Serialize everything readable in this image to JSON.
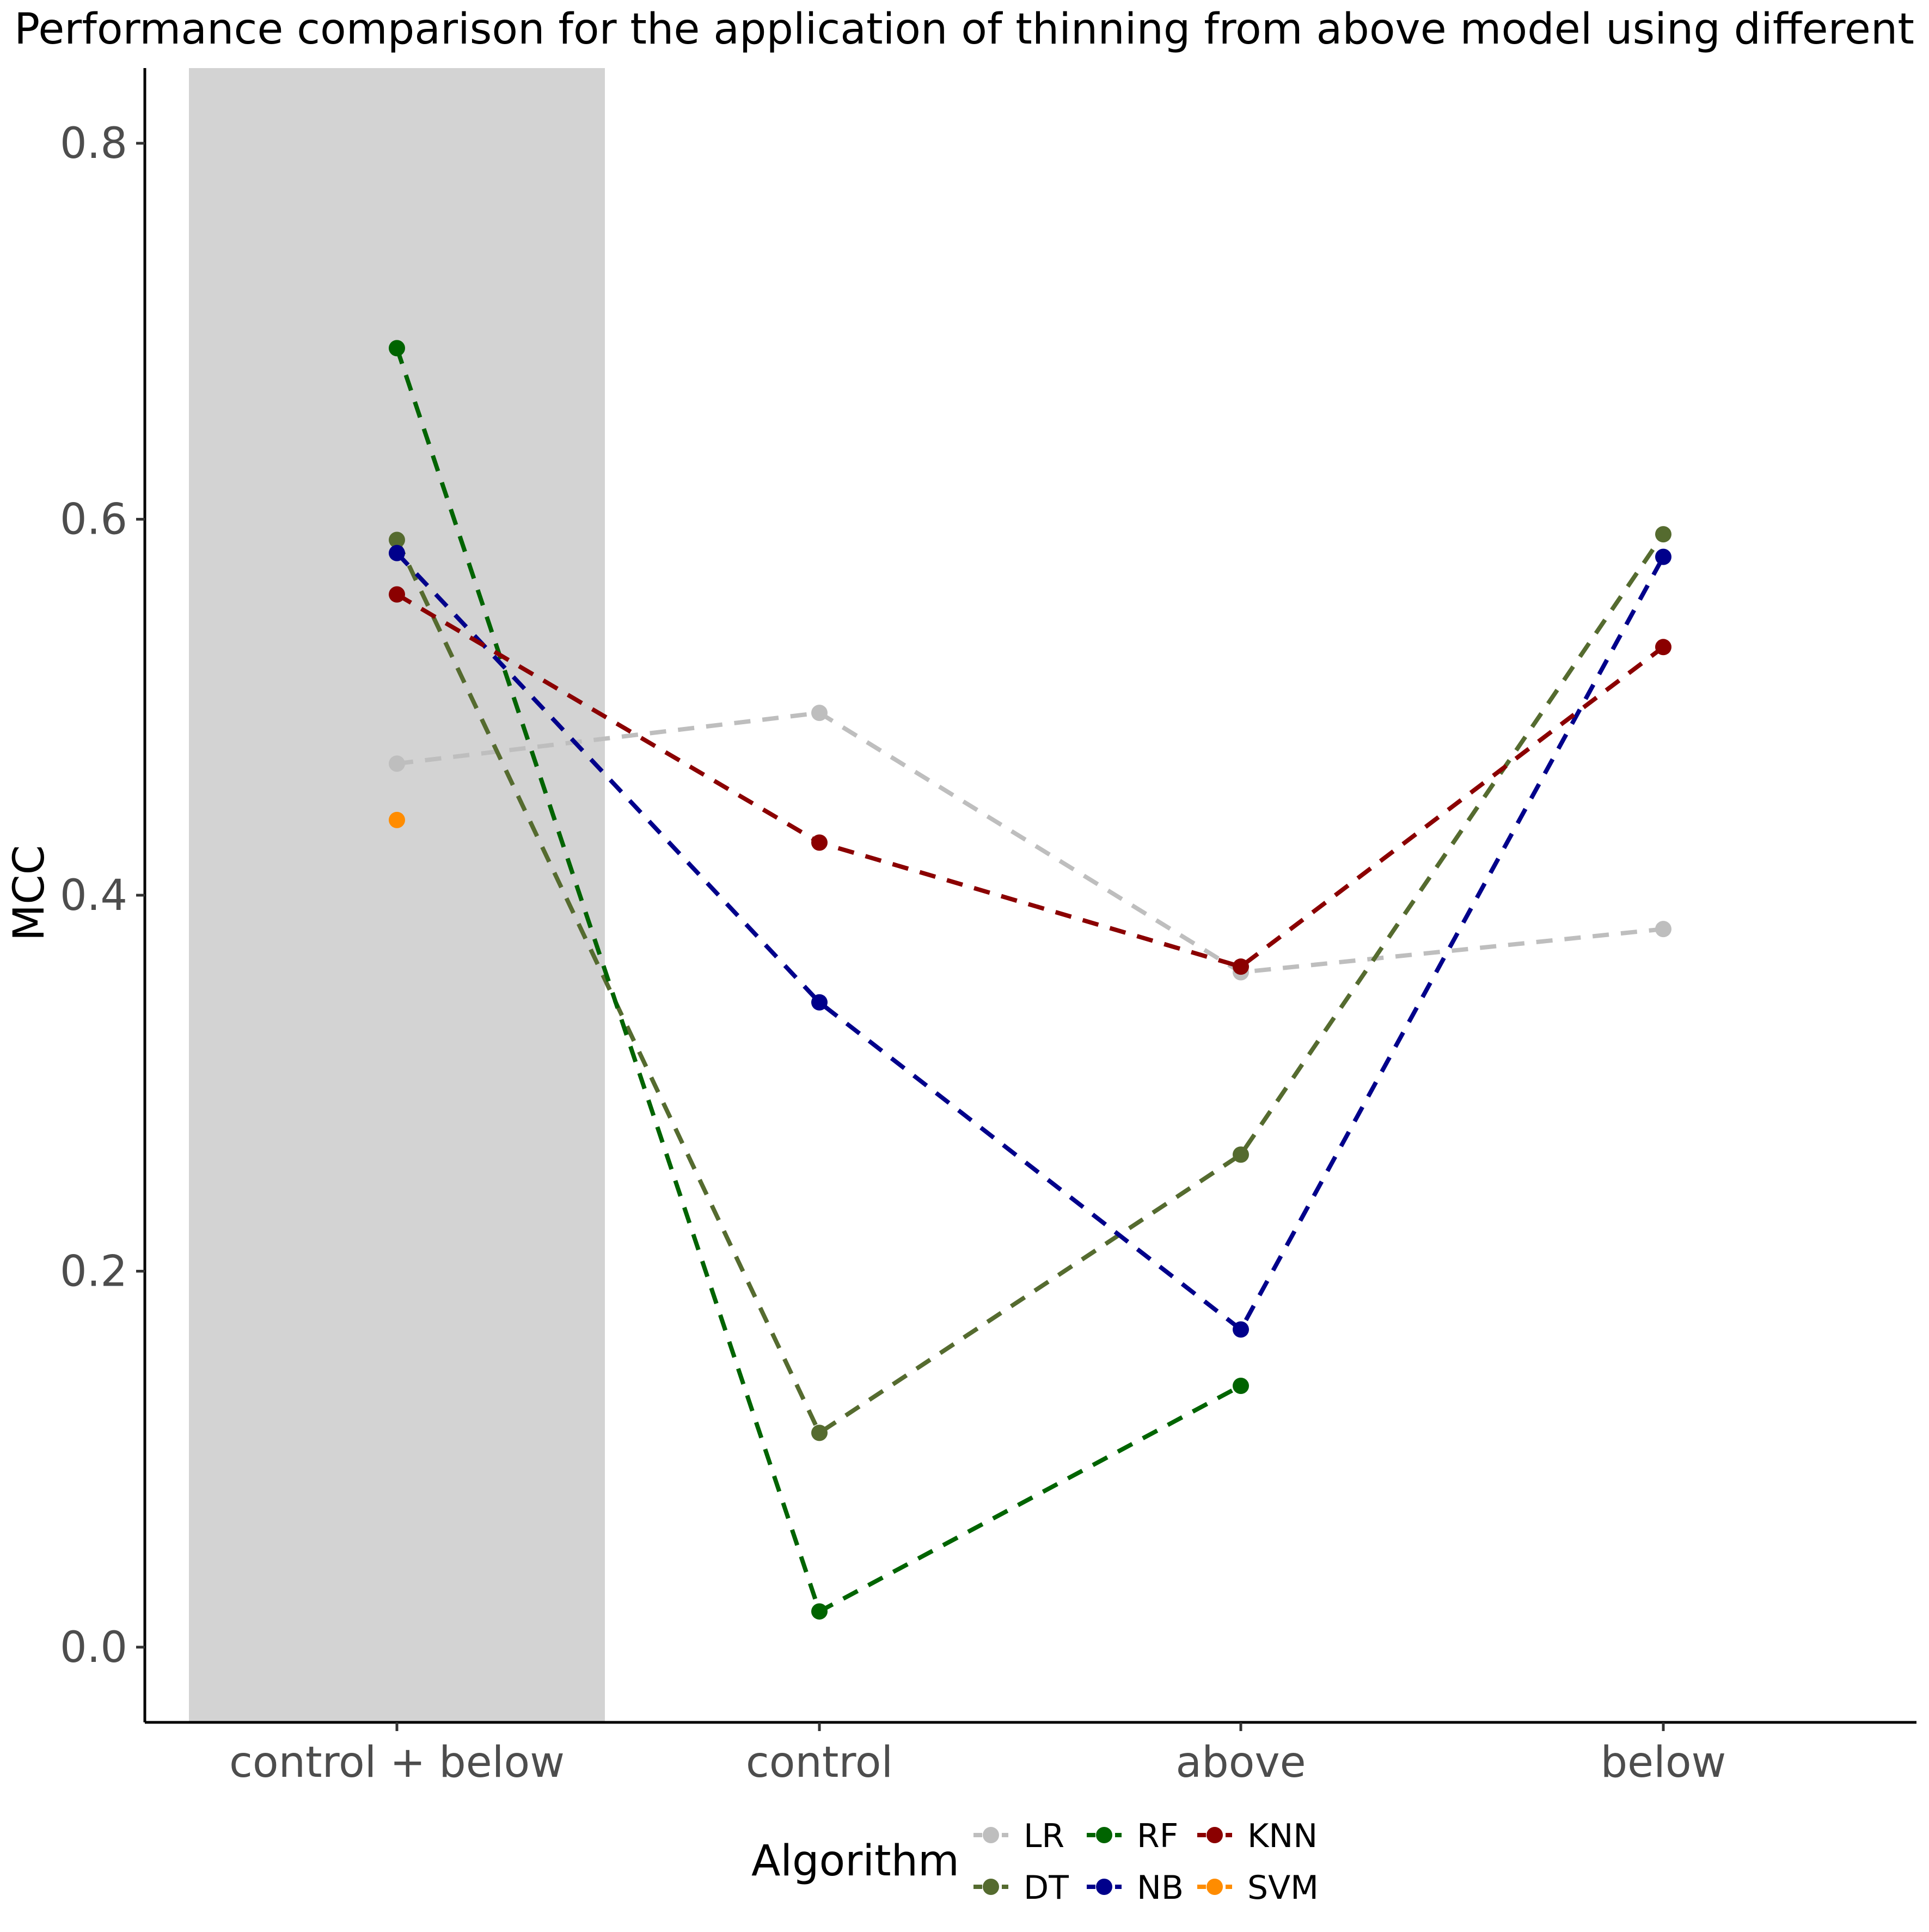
{
  "chart_data": {
    "type": "line",
    "title": "Performance comparison for the application of thinning from above model using different",
    "xlabel": "",
    "ylabel": "MCC",
    "categories": [
      "control + below",
      "control",
      "above",
      "below"
    ],
    "ylim": [
      -0.04,
      0.84
    ],
    "yticks": [
      0.0,
      0.2,
      0.4,
      0.6,
      0.8
    ],
    "ytick_labels": [
      "0.0",
      "0.2",
      "0.4",
      "0.6",
      "0.8"
    ],
    "grid": false,
    "highlight_category": "control + below",
    "highlight_color": "#d3d3d3",
    "line_style": "dashed",
    "legend": {
      "title": "Algorithm",
      "placement": "bottom",
      "order": [
        "LR",
        "DT",
        "RF",
        "NB",
        "KNN",
        "SVM"
      ]
    },
    "series": [
      {
        "name": "LR",
        "color": "#bebebe",
        "values": [
          0.47,
          0.497,
          0.359,
          0.382
        ]
      },
      {
        "name": "DT",
        "color": "#556b2f",
        "values": [
          0.589,
          0.114,
          0.262,
          0.592
        ]
      },
      {
        "name": "RF",
        "color": "#006400",
        "values": [
          0.691,
          0.019,
          0.139,
          null
        ]
      },
      {
        "name": "NB",
        "color": "#00008b",
        "values": [
          0.582,
          0.343,
          0.169,
          0.58
        ]
      },
      {
        "name": "KNN",
        "color": "#8b0000",
        "values": [
          0.56,
          0.428,
          0.362,
          0.532
        ]
      },
      {
        "name": "SVM",
        "color": "#ff8c00",
        "values": [
          0.44,
          null,
          null,
          null
        ]
      }
    ]
  }
}
